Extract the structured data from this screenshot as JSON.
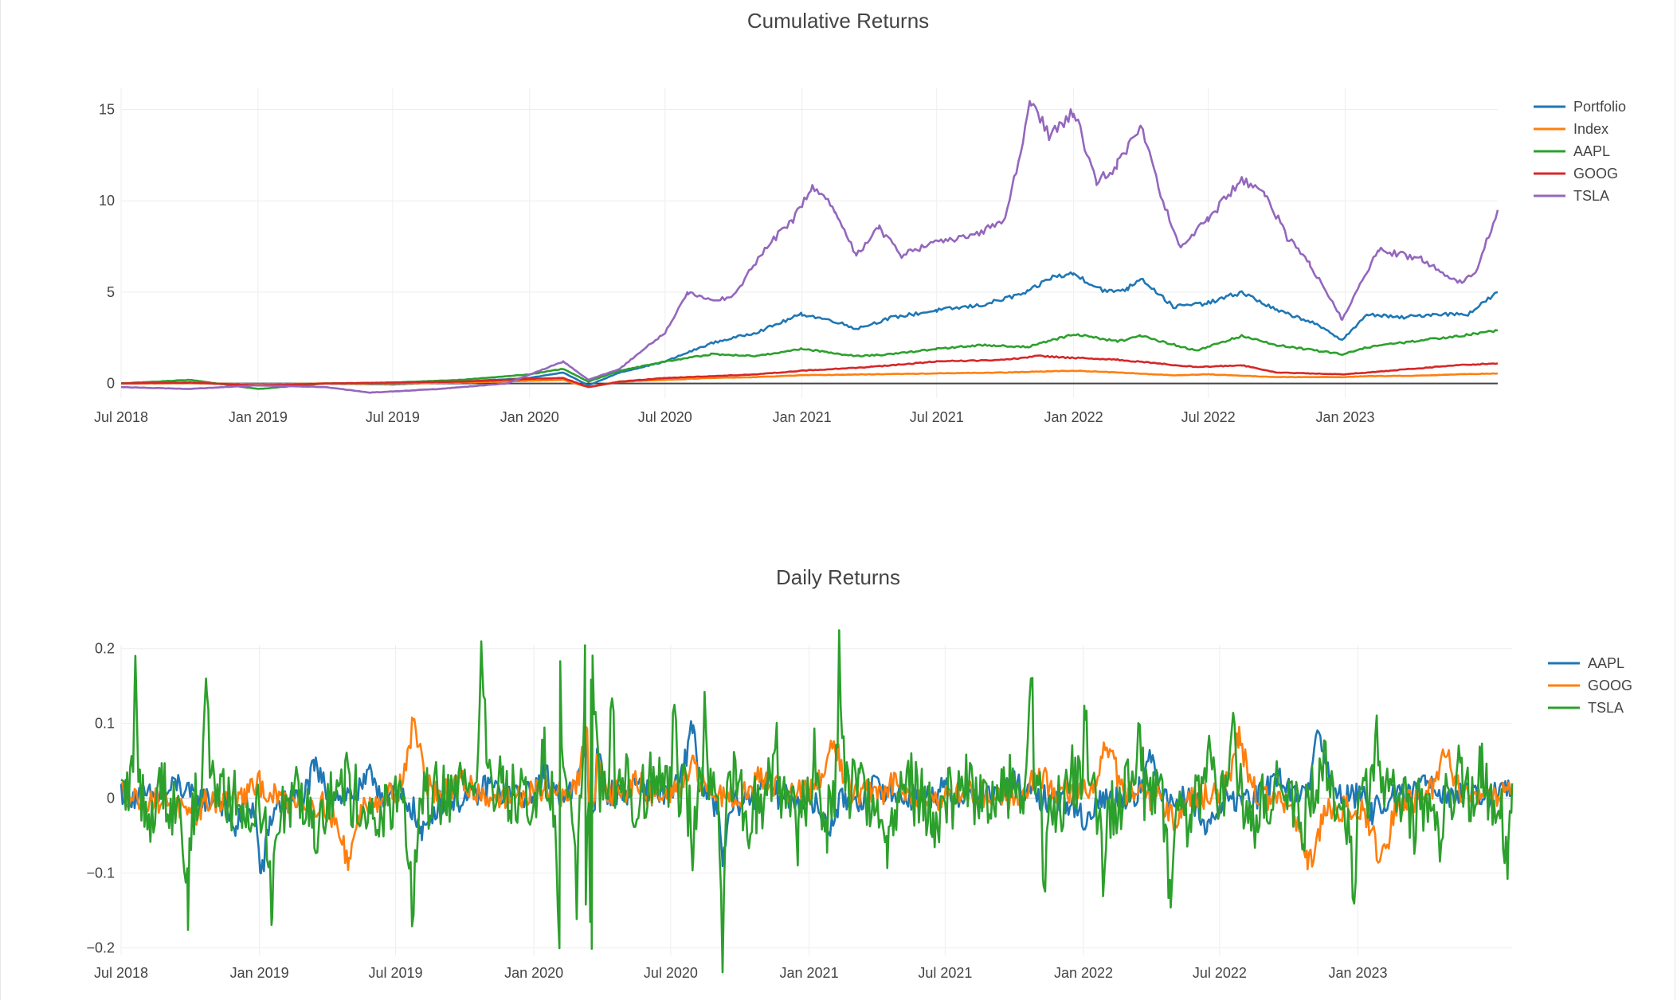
{
  "chart_data": [
    {
      "type": "line",
      "title": "Cumulative Returns",
      "xlabel": "",
      "ylabel": "",
      "x_ticks": [
        "Jul 2018",
        "Jan 2019",
        "Jul 2019",
        "Jan 2020",
        "Jul 2020",
        "Jan 2021",
        "Jul 2021",
        "Jan 2022",
        "Jul 2022",
        "Jan 2023"
      ],
      "y_ticks": [
        "0",
        "5",
        "10",
        "15"
      ],
      "xlim": [
        "2018-07-01",
        "2023-07-25"
      ],
      "ylim": [
        -0.8,
        16.2
      ],
      "grid": true,
      "legend_position": "right",
      "series": [
        {
          "name": "Portfolio",
          "color": "#1f77b4",
          "x": [
            "2018-07-01",
            "2018-10-01",
            "2019-01-01",
            "2019-04-01",
            "2019-07-01",
            "2019-10-01",
            "2020-01-01",
            "2020-02-15",
            "2020-03-20",
            "2020-05-01",
            "2020-07-01",
            "2020-09-01",
            "2020-11-01",
            "2021-01-01",
            "2021-02-15",
            "2021-03-15",
            "2021-05-01",
            "2021-07-01",
            "2021-09-01",
            "2021-11-01",
            "2021-12-01",
            "2022-01-01",
            "2022-02-15",
            "2022-03-15",
            "2022-04-01",
            "2022-05-15",
            "2022-07-01",
            "2022-08-15",
            "2022-10-01",
            "2022-11-15",
            "2022-12-28",
            "2023-02-01",
            "2023-03-15",
            "2023-05-01",
            "2023-06-15",
            "2023-07-25"
          ],
          "y": [
            0,
            0.05,
            -0.1,
            0,
            -0.05,
            0.1,
            0.3,
            0.6,
            -0.1,
            0.6,
            1.2,
            2.2,
            2.8,
            3.8,
            3.4,
            3.0,
            3.6,
            4.0,
            4.3,
            5.0,
            5.8,
            6.0,
            5.0,
            5.2,
            5.8,
            4.2,
            4.4,
            5.0,
            4.0,
            3.4,
            2.4,
            3.8,
            3.6,
            3.8,
            3.8,
            5.0
          ]
        },
        {
          "name": "Index",
          "color": "#ff7f0e",
          "x": [
            "2018-07-01",
            "2018-10-01",
            "2019-01-01",
            "2019-04-01",
            "2019-07-01",
            "2019-10-01",
            "2020-01-01",
            "2020-02-15",
            "2020-03-20",
            "2020-05-01",
            "2020-07-01",
            "2020-09-01",
            "2020-11-01",
            "2021-01-01",
            "2021-04-01",
            "2021-07-01",
            "2021-10-01",
            "2022-01-01",
            "2022-03-01",
            "2022-05-15",
            "2022-07-01",
            "2022-10-01",
            "2022-12-28",
            "2023-02-01",
            "2023-04-01",
            "2023-06-01",
            "2023-07-25"
          ],
          "y": [
            0,
            0.02,
            -0.05,
            0,
            0,
            0.05,
            0.15,
            0.2,
            -0.2,
            0.1,
            0.2,
            0.3,
            0.35,
            0.45,
            0.5,
            0.55,
            0.6,
            0.7,
            0.6,
            0.45,
            0.5,
            0.35,
            0.35,
            0.4,
            0.42,
            0.5,
            0.55
          ]
        },
        {
          "name": "AAPL",
          "color": "#2ca02c",
          "x": [
            "2018-07-01",
            "2018-10-01",
            "2019-01-01",
            "2019-04-01",
            "2019-07-01",
            "2019-10-01",
            "2020-01-01",
            "2020-02-15",
            "2020-03-20",
            "2020-05-01",
            "2020-07-01",
            "2020-09-01",
            "2020-11-01",
            "2021-01-01",
            "2021-03-15",
            "2021-05-01",
            "2021-07-01",
            "2021-09-01",
            "2021-11-01",
            "2022-01-01",
            "2022-03-01",
            "2022-04-01",
            "2022-06-15",
            "2022-08-15",
            "2022-10-01",
            "2022-12-28",
            "2023-02-01",
            "2023-04-01",
            "2023-06-01",
            "2023-07-25"
          ],
          "y": [
            0,
            0.2,
            -0.3,
            0,
            0.05,
            0.2,
            0.5,
            0.8,
            0.1,
            0.7,
            1.2,
            1.6,
            1.5,
            1.9,
            1.5,
            1.6,
            1.9,
            2.1,
            2.0,
            2.7,
            2.3,
            2.6,
            1.8,
            2.6,
            2.1,
            1.6,
            2.0,
            2.3,
            2.6,
            2.9
          ]
        },
        {
          "name": "GOOG",
          "color": "#d62728",
          "x": [
            "2018-07-01",
            "2018-10-01",
            "2019-01-01",
            "2019-04-01",
            "2019-07-01",
            "2019-10-01",
            "2020-01-01",
            "2020-02-15",
            "2020-03-20",
            "2020-05-01",
            "2020-07-01",
            "2020-09-01",
            "2020-11-01",
            "2021-01-01",
            "2021-04-01",
            "2021-07-01",
            "2021-10-01",
            "2021-11-15",
            "2022-01-01",
            "2022-03-01",
            "2022-06-15",
            "2022-08-15",
            "2022-10-01",
            "2022-12-28",
            "2023-02-01",
            "2023-04-01",
            "2023-06-01",
            "2023-07-25"
          ],
          "y": [
            0,
            0.05,
            -0.1,
            0,
            0.05,
            0.1,
            0.25,
            0.3,
            -0.2,
            0.1,
            0.3,
            0.4,
            0.5,
            0.7,
            0.9,
            1.2,
            1.3,
            1.5,
            1.4,
            1.3,
            0.9,
            1.0,
            0.6,
            0.5,
            0.6,
            0.8,
            1.0,
            1.1
          ]
        },
        {
          "name": "TSLA",
          "color": "#9467bd",
          "x": [
            "2018-07-01",
            "2018-10-01",
            "2019-01-01",
            "2019-04-01",
            "2019-06-01",
            "2019-09-01",
            "2019-12-01",
            "2020-02-15",
            "2020-03-20",
            "2020-05-01",
            "2020-07-01",
            "2020-08-01",
            "2020-09-01",
            "2020-10-01",
            "2020-11-15",
            "2020-12-20",
            "2021-01-15",
            "2021-02-15",
            "2021-03-15",
            "2021-04-15",
            "2021-05-15",
            "2021-07-01",
            "2021-08-15",
            "2021-10-01",
            "2021-11-05",
            "2021-12-01",
            "2022-01-01",
            "2022-02-01",
            "2022-03-01",
            "2022-04-01",
            "2022-05-01",
            "2022-05-25",
            "2022-07-01",
            "2022-08-15",
            "2022-09-15",
            "2022-10-15",
            "2022-11-15",
            "2022-12-28",
            "2023-02-15",
            "2023-04-15",
            "2023-06-01",
            "2023-06-25",
            "2023-07-25"
          ],
          "y": [
            -0.2,
            -0.3,
            -0.1,
            -0.2,
            -0.5,
            -0.3,
            0,
            1.2,
            0.2,
            0.8,
            2.8,
            5.0,
            4.5,
            4.8,
            7.5,
            9.0,
            10.8,
            9.5,
            7.0,
            8.5,
            7.0,
            7.8,
            8.0,
            9.0,
            15.5,
            13.5,
            15.0,
            11.0,
            12.0,
            14.0,
            10.0,
            7.5,
            9.0,
            11.2,
            10.5,
            8.0,
            6.5,
            3.5,
            7.3,
            6.8,
            5.5,
            6.0,
            9.5
          ]
        }
      ]
    },
    {
      "type": "line",
      "title": "Daily Returns",
      "xlabel": "",
      "ylabel": "",
      "x_ticks": [
        "Jul 2018",
        "Jan 2019",
        "Jul 2019",
        "Jan 2020",
        "Jul 2020",
        "Jan 2021",
        "Jul 2021",
        "Jan 2022",
        "Jul 2022",
        "Jan 2023"
      ],
      "y_ticks": [
        "0.2",
        "0.1",
        "0",
        "−0.1",
        "−0.2"
      ],
      "xlim": [
        "2018-07-01",
        "2023-07-25"
      ],
      "ylim": [
        -0.21,
        0.205
      ],
      "grid": true,
      "legend_position": "right",
      "series": [
        {
          "name": "AAPL",
          "color": "#1f77b4",
          "x": [
            "2018-07-01",
            "2018-09-15",
            "2018-12-01",
            "2019-01-03",
            "2019-03-15",
            "2019-06-01",
            "2019-08-05",
            "2019-11-01",
            "2020-01-15",
            "2020-03-12",
            "2020-03-16",
            "2020-03-25",
            "2020-05-15",
            "2020-07-31",
            "2020-09-08",
            "2020-11-01",
            "2021-01-27",
            "2021-04-01",
            "2021-07-01",
            "2021-10-01",
            "2022-01-03",
            "2022-04-01",
            "2022-06-15",
            "2022-09-15",
            "2022-11-10",
            "2023-01-20",
            "2023-04-01",
            "2023-07-25"
          ],
          "y": [
            0.01,
            0.02,
            -0.04,
            -0.1,
            0.04,
            0.03,
            -0.05,
            0.02,
            0.03,
            0.08,
            -0.12,
            0.06,
            0.02,
            0.1,
            -0.08,
            0.03,
            -0.04,
            0.02,
            0.01,
            0.02,
            -0.03,
            0.05,
            -0.04,
            0.03,
            0.09,
            -0.02,
            0.03,
            0.01
          ]
        },
        {
          "name": "GOOG",
          "color": "#ff7f0e",
          "x": [
            "2018-07-01",
            "2018-10-01",
            "2019-01-01",
            "2019-04-30",
            "2019-07-26",
            "2019-10-01",
            "2020-01-15",
            "2020-03-12",
            "2020-03-16",
            "2020-03-25",
            "2020-05-15",
            "2020-07-31",
            "2020-11-01",
            "2021-02-03",
            "2021-05-01",
            "2021-08-01",
            "2021-11-01",
            "2022-02-03",
            "2022-05-01",
            "2022-07-27",
            "2022-10-26",
            "2023-02-03",
            "2023-04-26",
            "2023-07-25"
          ],
          "y": [
            0.01,
            -0.03,
            0.02,
            -0.08,
            0.1,
            0.02,
            0.01,
            0.09,
            -0.11,
            0.07,
            0.02,
            0.04,
            0.03,
            0.07,
            0.02,
            0.01,
            0.03,
            0.07,
            -0.03,
            0.08,
            -0.09,
            -0.08,
            0.06,
            0.01
          ]
        },
        {
          "name": "TSLA",
          "color": "#2ca02c",
          "x": [
            "2018-07-01",
            "2018-07-20",
            "2018-08-07",
            "2018-08-24",
            "2018-09-28",
            "2018-10-23",
            "2018-11-15",
            "2018-12-10",
            "2019-01-18",
            "2019-02-20",
            "2019-03-15",
            "2019-04-25",
            "2019-06-01",
            "2019-07-25",
            "2019-08-20",
            "2019-09-15",
            "2019-10-24",
            "2019-11-22",
            "2019-12-15",
            "2020-01-15",
            "2020-02-04",
            "2020-02-05",
            "2020-02-27",
            "2020-03-09",
            "2020-03-10",
            "2020-03-16",
            "2020-03-17",
            "2020-03-18",
            "2020-03-19",
            "2020-04-14",
            "2020-05-01",
            "2020-06-10",
            "2020-07-06",
            "2020-07-31",
            "2020-08-15",
            "2020-09-08",
            "2020-09-23",
            "2020-10-15",
            "2020-11-17",
            "2020-12-18",
            "2021-01-08",
            "2021-01-25",
            "2021-02-10",
            "2021-03-09",
            "2021-04-15",
            "2021-05-15",
            "2021-06-15",
            "2021-08-01",
            "2021-09-15",
            "2021-10-25",
            "2021-11-09",
            "2021-12-15",
            "2022-01-03",
            "2022-01-27",
            "2022-02-25",
            "2022-03-15",
            "2022-04-27",
            "2022-05-24",
            "2022-06-15",
            "2022-07-21",
            "2022-08-15",
            "2022-09-15",
            "2022-10-20",
            "2022-11-15",
            "2022-12-27",
            "2023-01-26",
            "2023-02-15",
            "2023-03-15",
            "2023-04-20",
            "2023-05-15",
            "2023-06-15",
            "2023-07-20",
            "2023-07-25"
          ],
          "y": [
            0.0,
            0.16,
            -0.06,
            0.04,
            -0.14,
            0.17,
            0.02,
            -0.05,
            -0.13,
            0.05,
            -0.05,
            0.03,
            -0.04,
            -0.14,
            0.03,
            0.02,
            0.18,
            0.02,
            0.04,
            0.05,
            -0.17,
            0.14,
            -0.13,
            0.2,
            -0.15,
            -0.18,
            0.18,
            -0.16,
            0.18,
            0.12,
            0.02,
            0.05,
            0.13,
            -0.1,
            0.12,
            -0.21,
            0.05,
            -0.05,
            0.08,
            -0.06,
            0.06,
            -0.04,
            0.19,
            0.03,
            -0.08,
            0.04,
            -0.05,
            0.02,
            0.03,
            0.13,
            -0.12,
            0.06,
            0.13,
            -0.11,
            0.03,
            0.07,
            -0.12,
            -0.06,
            0.09,
            0.1,
            -0.05,
            0.04,
            -0.07,
            0.06,
            -0.12,
            0.11,
            0.03,
            -0.05,
            -0.08,
            0.04,
            0.06,
            -0.1,
            0.02
          ]
        }
      ]
    }
  ]
}
